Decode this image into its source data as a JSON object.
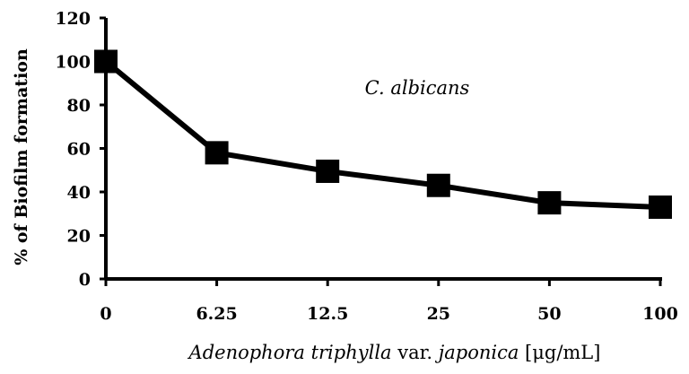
{
  "chart_data": {
    "type": "line",
    "categories": [
      "0",
      "6.25",
      "12.5",
      "25",
      "50",
      "100"
    ],
    "values": [
      100,
      58,
      49.5,
      43,
      35,
      33
    ],
    "ylim": [
      0,
      120
    ],
    "yticks": [
      "0",
      "20",
      "40",
      "60",
      "80",
      "100",
      "120"
    ],
    "ylabel": "% of  Biofilm formation",
    "xlabel": {
      "part1": "Adenophora triphylla",
      "part2": " var. ",
      "part3": "japonica",
      "part4": " [μg/mL]"
    },
    "annotation": "C. albicans",
    "series_color": "#000000",
    "grid": false,
    "legend": "none"
  }
}
